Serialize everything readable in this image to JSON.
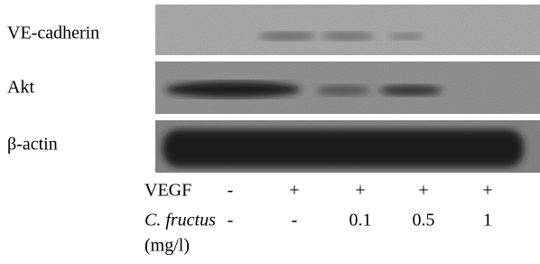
{
  "blot": {
    "rows": [
      {
        "label": "VE-cadherin"
      },
      {
        "label": "Akt"
      },
      {
        "label": "β-actin"
      }
    ]
  },
  "treatments": [
    {
      "label": "VEGF",
      "values": [
        "-",
        "+",
        "+",
        "+",
        "+"
      ]
    },
    {
      "label": "C. fructus",
      "unit": "(mg/l)",
      "values": [
        "-",
        "-",
        0.1,
        0.5,
        1
      ]
    }
  ]
}
